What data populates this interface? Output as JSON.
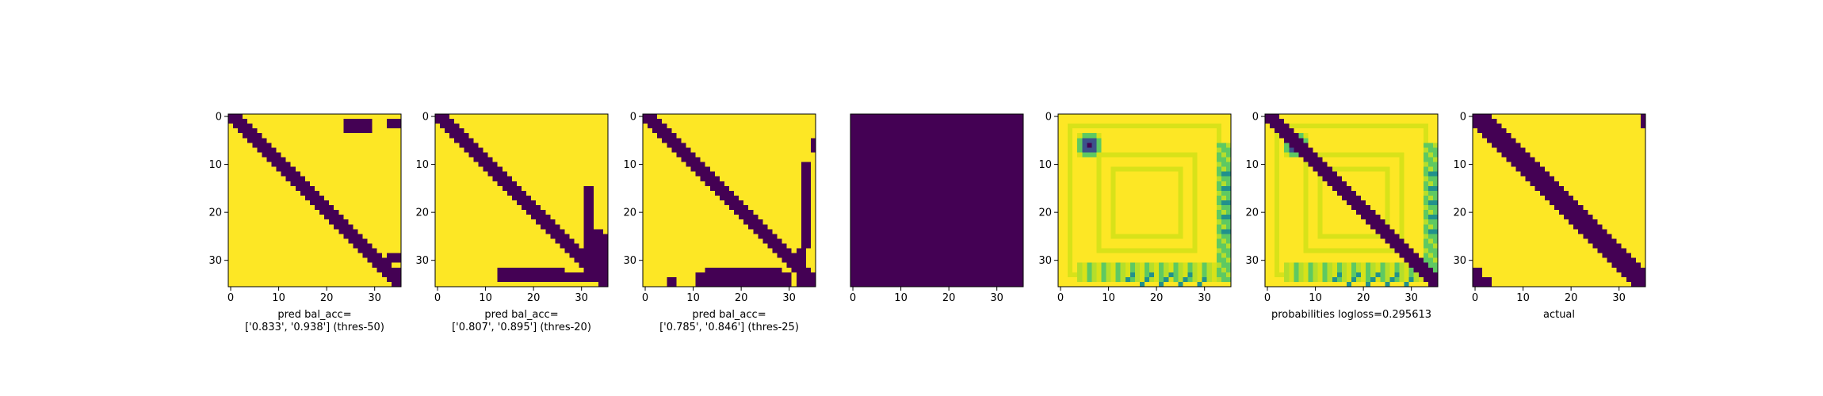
{
  "colors": {
    "low": "#440154",
    "high": "#fde725",
    "mid1": "#3b528b",
    "mid2": "#21918c",
    "mid3": "#5ec962",
    "mid4": "#b5de2b",
    "mid5": "#d8e219"
  },
  "chart_data": [
    {
      "type": "heatmap",
      "grid_size": 36,
      "xticks": [
        "0",
        "10",
        "20",
        "30"
      ],
      "yticks": [
        "0",
        "10",
        "20",
        "30"
      ],
      "caption": [
        "pred bal_acc=",
        "['0.833', '0.938'] (thres-50)"
      ],
      "pattern": "diagonal-band",
      "band": 2,
      "extras": [
        [
          24,
          29,
          1,
          3
        ],
        [
          33,
          35,
          1,
          2
        ],
        [
          33,
          35,
          29,
          30
        ],
        [
          32,
          35,
          32,
          33
        ]
      ]
    },
    {
      "type": "heatmap",
      "grid_size": 36,
      "xticks": [
        "0",
        "10",
        "20",
        "30"
      ],
      "yticks": [
        "0",
        "10",
        "20",
        "30"
      ],
      "caption": [
        "pred bal_acc=",
        "['0.807', '0.895'] (thres-20)"
      ],
      "pattern": "diagonal-band",
      "band": 2,
      "extras": [
        [
          13,
          26,
          32,
          33
        ],
        [
          13,
          33,
          33,
          34
        ],
        [
          33,
          35,
          32,
          33
        ],
        [
          31,
          32,
          15,
          33
        ],
        [
          32,
          34,
          24,
          30
        ],
        [
          34,
          35,
          25,
          35
        ]
      ]
    },
    {
      "type": "heatmap",
      "grid_size": 36,
      "xticks": [
        "0",
        "10",
        "20",
        "30"
      ],
      "yticks": [
        "0",
        "10",
        "20",
        "30"
      ],
      "caption": [
        "pred bal_acc=",
        "['0.785', '0.846'] (thres-25)"
      ],
      "pattern": "diagonal-band",
      "band": 2,
      "extras": [
        [
          13,
          28,
          32,
          33
        ],
        [
          11,
          30,
          33,
          35
        ],
        [
          33,
          34,
          10,
          27
        ],
        [
          35,
          35,
          5,
          7
        ],
        [
          32,
          33,
          28,
          35
        ],
        [
          5,
          6,
          34,
          35
        ]
      ]
    },
    {
      "type": "heatmap",
      "grid_size": 36,
      "xticks": [
        "0",
        "10",
        "20",
        "30"
      ],
      "yticks": [],
      "caption": [],
      "pattern": "uniform-low"
    },
    {
      "type": "heatmap",
      "grid_size": 36,
      "xticks": [
        "0",
        "10",
        "20",
        "30"
      ],
      "yticks": [
        "0",
        "10",
        "20",
        "30"
      ],
      "caption": [],
      "pattern": "probability-field"
    },
    {
      "type": "heatmap",
      "grid_size": 36,
      "xticks": [
        "0",
        "10",
        "20",
        "30"
      ],
      "yticks": [
        "0",
        "10",
        "20",
        "30"
      ],
      "caption": [
        "probabilities logloss=0.295613"
      ],
      "pattern": "probability-field-diagonal",
      "band": 2
    },
    {
      "type": "heatmap",
      "grid_size": 36,
      "xticks": [
        "0",
        "10",
        "20",
        "30"
      ],
      "yticks": [
        "0",
        "10",
        "20",
        "30"
      ],
      "caption": [
        "actual"
      ],
      "pattern": "wide-diagonal-band",
      "band": 4,
      "extras": [
        [
          0,
          1,
          32,
          35
        ],
        [
          2,
          3,
          34,
          35
        ],
        [
          35,
          35,
          0,
          2
        ]
      ]
    }
  ]
}
